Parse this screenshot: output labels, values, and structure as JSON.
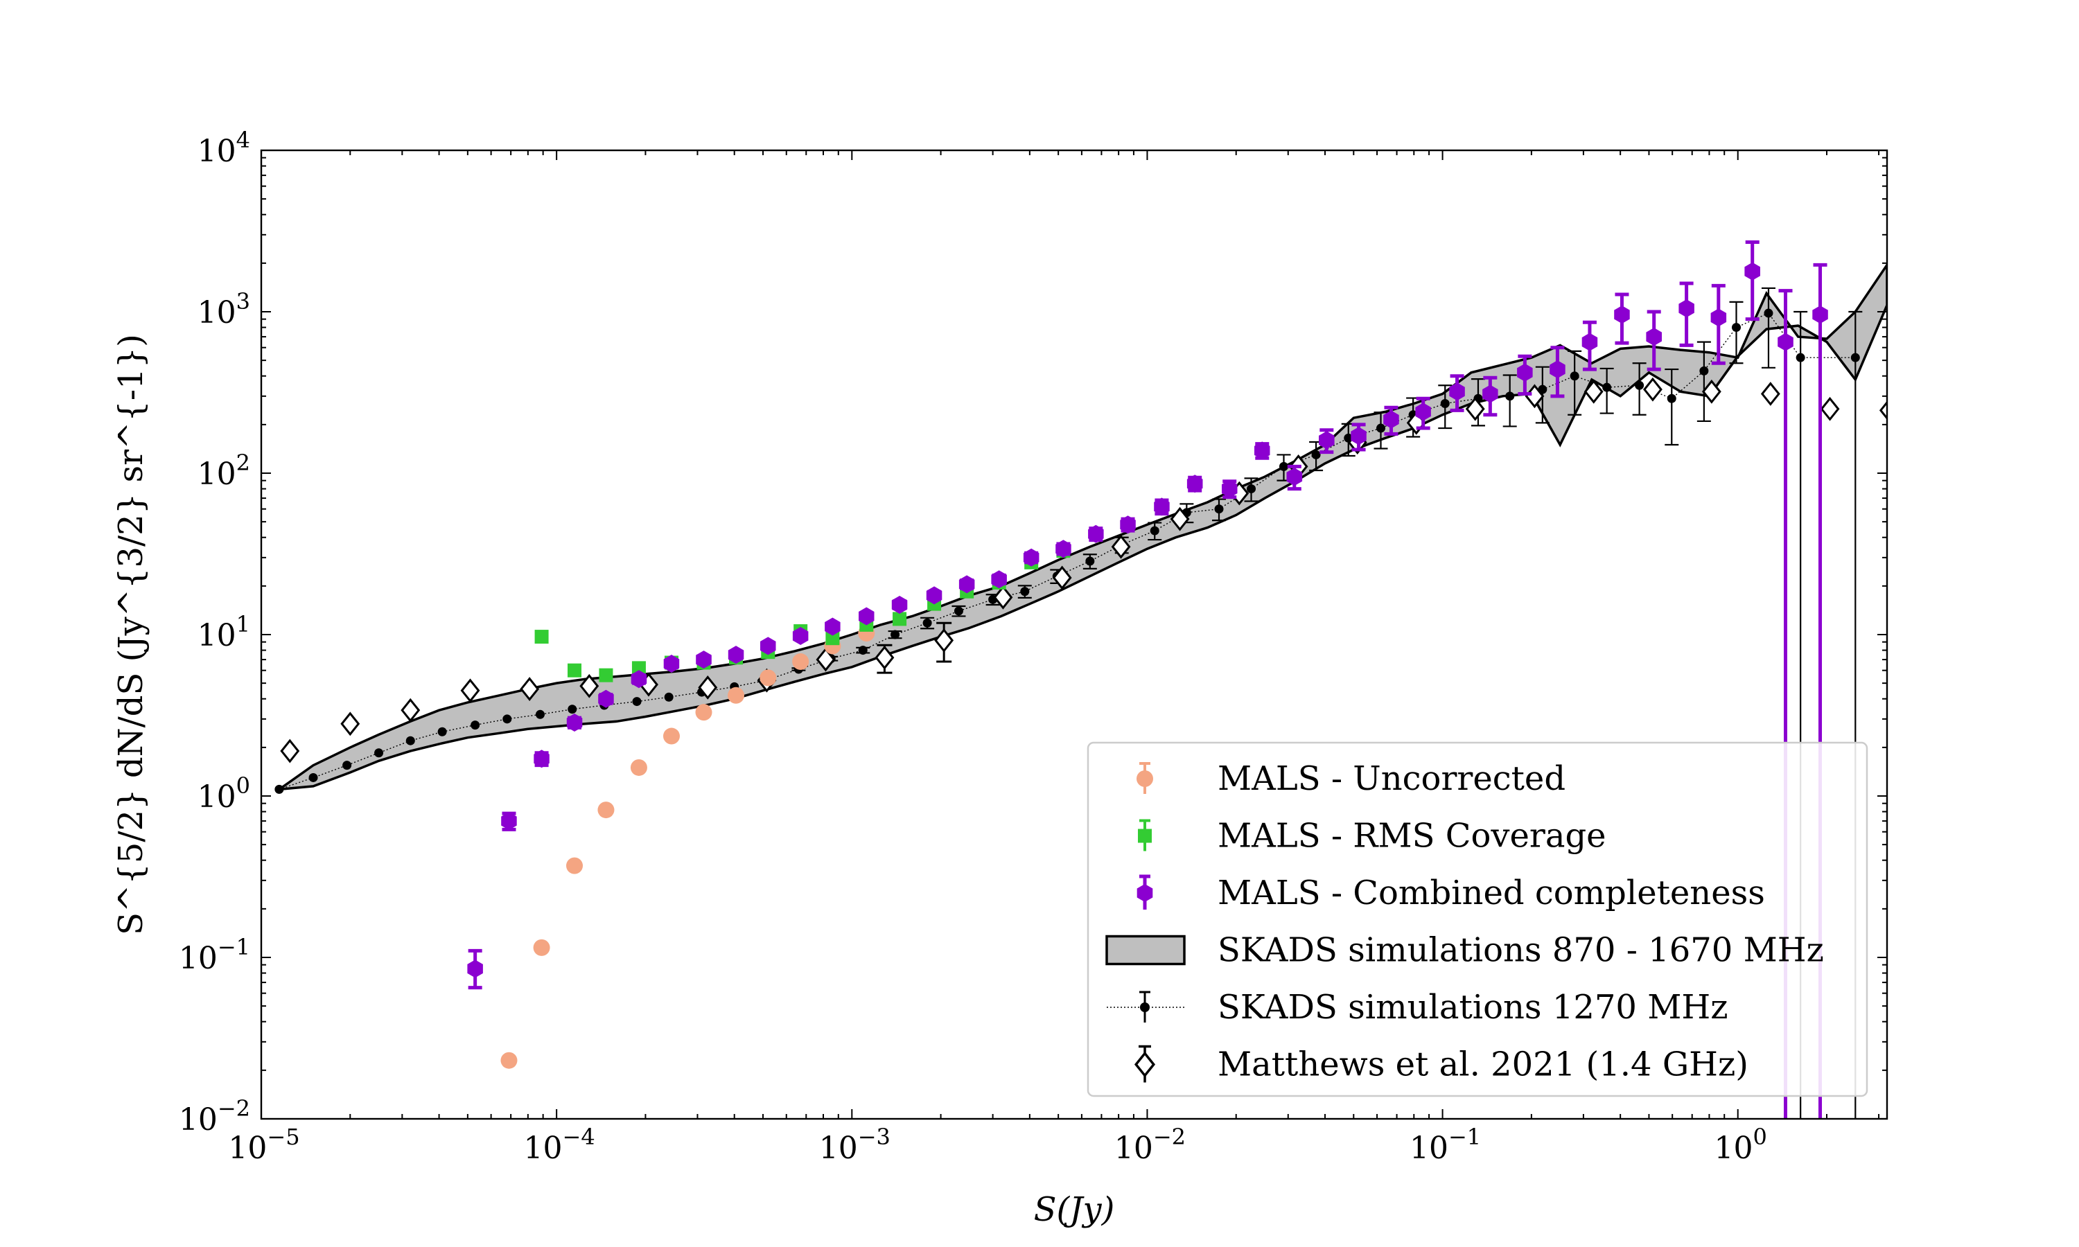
{
  "chart_data": {
    "type": "scatter",
    "title": "",
    "xlabel": "S(Jy)",
    "ylabel": "S^{5/2} dN/dS (Jy^{3/2} sr^{-1})",
    "xscale": "log",
    "yscale": "log",
    "xlim": [
      1e-05,
      3.2
    ],
    "ylim": [
      0.01,
      10000
    ],
    "x_ticks": [
      {
        "value": 1e-05,
        "base": "10",
        "exp": "−5"
      },
      {
        "value": 0.0001,
        "base": "10",
        "exp": "−4"
      },
      {
        "value": 0.001,
        "base": "10",
        "exp": "−3"
      },
      {
        "value": 0.01,
        "base": "10",
        "exp": "−2"
      },
      {
        "value": 0.1,
        "base": "10",
        "exp": "−1"
      },
      {
        "value": 1,
        "base": "10",
        "exp": "0"
      }
    ],
    "y_ticks": [
      {
        "value": 0.01,
        "base": "10",
        "exp": "−2"
      },
      {
        "value": 0.1,
        "base": "10",
        "exp": "−1"
      },
      {
        "value": 1,
        "base": "10",
        "exp": "0"
      },
      {
        "value": 10,
        "base": "10",
        "exp": "1"
      },
      {
        "value": 100,
        "base": "10",
        "exp": "2"
      },
      {
        "value": 1000,
        "base": "10",
        "exp": "3"
      },
      {
        "value": 10000,
        "base": "10",
        "exp": "4"
      }
    ],
    "legend_position": "lower-right",
    "series": [
      {
        "name": "MALS - Uncorrected",
        "kind": "circle",
        "color": "#f4a582",
        "x": [
          6.9e-05,
          8.9e-05,
          0.000115,
          0.000147,
          0.00019,
          0.000245,
          0.000315,
          0.000405,
          0.00052,
          0.00067,
          0.00086,
          0.00112
        ],
        "y": [
          0.023,
          0.115,
          0.37,
          0.82,
          1.5,
          2.35,
          3.3,
          4.2,
          5.4,
          6.8,
          8.5,
          10.2
        ]
      },
      {
        "name": "MALS - RMS Coverage",
        "kind": "square",
        "color": "#33cc33",
        "x": [
          8.9e-05,
          0.000115,
          0.000147,
          0.00019,
          0.000245,
          0.000315,
          0.000405,
          0.00052,
          0.00067,
          0.00086,
          0.00112,
          0.00145,
          0.0019,
          0.00245,
          0.00315,
          0.00405,
          0.0052
        ],
        "y": [
          9.7,
          6.0,
          5.6,
          6.2,
          6.7,
          6.7,
          7.2,
          7.8,
          10.5,
          9.5,
          11.5,
          12.5,
          15.5,
          18.5,
          21.0,
          28.0,
          33.0
        ]
      },
      {
        "name": "MALS - Combined completeness",
        "kind": "hexagon",
        "color": "#8b00d0",
        "x": [
          5.3e-05,
          6.9e-05,
          8.9e-05,
          0.000115,
          0.000147,
          0.00019,
          0.000245,
          0.000315,
          0.000405,
          0.00052,
          0.00067,
          0.00086,
          0.00112,
          0.00145,
          0.0019,
          0.00245,
          0.00315,
          0.00405,
          0.0052,
          0.0067,
          0.0086,
          0.0112,
          0.0145,
          0.019,
          0.0245,
          0.0315,
          0.0405,
          0.052,
          0.067,
          0.086,
          0.112,
          0.145,
          0.19,
          0.245,
          0.315,
          0.405,
          0.52,
          0.67,
          0.86,
          1.12,
          1.45,
          1.9
        ],
        "y": [
          0.085,
          0.7,
          1.7,
          2.85,
          4.0,
          5.3,
          6.6,
          7.0,
          7.5,
          8.5,
          9.8,
          11.2,
          13.0,
          15.3,
          17.5,
          20.5,
          22.0,
          30.0,
          34.0,
          42.0,
          48.0,
          62.0,
          86.0,
          80.0,
          138.0,
          95.0,
          160.0,
          170.0,
          215.0,
          240.0,
          320.0,
          310.0,
          420.0,
          440.0,
          650.0,
          960.0,
          700.0,
          1050.0,
          920.0,
          1780.0,
          650.0,
          960.0
        ],
        "y_low": [
          0.065,
          0.62,
          1.55,
          2.65,
          3.75,
          5.0,
          6.25,
          6.65,
          7.15,
          8.1,
          9.35,
          10.7,
          12.4,
          14.5,
          16.6,
          19.3,
          20.7,
          28.0,
          31.5,
          38.5,
          44.0,
          56.0,
          78.0,
          71.0,
          124.0,
          80.0,
          135.0,
          140.0,
          175.0,
          190.0,
          245.0,
          230.0,
          310.0,
          300.0,
          440.0,
          640.0,
          440.0,
          620.0,
          480.0,
          900.0,
          0.01,
          0.01
        ],
        "y_high": [
          0.11,
          0.78,
          1.85,
          3.05,
          4.25,
          5.6,
          6.95,
          7.35,
          7.85,
          8.9,
          10.25,
          11.7,
          13.6,
          16.1,
          18.4,
          21.7,
          23.3,
          32.0,
          36.5,
          45.5,
          52.0,
          68.0,
          94.0,
          89.0,
          152.0,
          110.0,
          185.0,
          200.0,
          255.0,
          290.0,
          400.0,
          390.0,
          530.0,
          600.0,
          860.0,
          1280.0,
          1000.0,
          1500.0,
          1450.0,
          2700.0,
          1350.0,
          1950.0
        ]
      },
      {
        "name": "SKADS simulations 870 - 1670 MHz",
        "kind": "band",
        "color": "#bfbfbf",
        "x": [
          1.15e-05,
          1.5e-05,
          2e-05,
          2.5e-05,
          3.2e-05,
          4e-05,
          5e-05,
          6.4e-05,
          8e-05,
          0.0001,
          0.000125,
          0.00016,
          0.0002,
          0.00025,
          0.00032,
          0.0004,
          0.0005,
          0.00064,
          0.0008,
          0.001,
          0.00125,
          0.0016,
          0.002,
          0.0025,
          0.0032,
          0.004,
          0.005,
          0.0064,
          0.008,
          0.01,
          0.0125,
          0.016,
          0.02,
          0.025,
          0.032,
          0.04,
          0.05,
          0.064,
          0.08,
          0.1,
          0.125,
          0.16,
          0.2,
          0.25,
          0.32,
          0.4,
          0.5,
          0.64,
          0.8,
          1.0,
          1.25,
          1.6,
          2.0,
          2.5,
          3.2
        ],
        "y_low": [
          1.1,
          1.15,
          1.4,
          1.65,
          1.9,
          2.1,
          2.3,
          2.45,
          2.6,
          2.7,
          2.8,
          2.9,
          3.1,
          3.35,
          3.65,
          4.0,
          4.5,
          5.1,
          5.7,
          6.3,
          7.3,
          8.5,
          9.7,
          11.0,
          13.0,
          15.5,
          18.5,
          23.0,
          28.0,
          34.0,
          40.0,
          46.0,
          55.0,
          70.0,
          90.0,
          115.0,
          140.0,
          165.0,
          190.0,
          230.0,
          270.0,
          300.0,
          310.0,
          150.0,
          380.0,
          300.0,
          420.0,
          320.0,
          300.0,
          530.0,
          780.0,
          820.0,
          650.0,
          380.0,
          1100.0
        ],
        "y_high": [
          1.1,
          1.55,
          2.0,
          2.4,
          2.9,
          3.4,
          3.8,
          4.2,
          4.6,
          5.0,
          5.3,
          5.5,
          5.7,
          5.9,
          6.2,
          6.6,
          7.1,
          7.9,
          8.8,
          10.0,
          11.5,
          13.0,
          15.0,
          17.5,
          20.0,
          24.0,
          29.0,
          35.0,
          41.0,
          48.0,
          56.0,
          66.0,
          80.0,
          95.0,
          120.0,
          150.0,
          220.0,
          240.0,
          270.0,
          310.0,
          420.0,
          470.0,
          520.0,
          620.0,
          480.0,
          590.0,
          610.0,
          580.0,
          560.0,
          520.0,
          1300.0,
          700.0,
          680.0,
          1000.0,
          1950.0
        ]
      },
      {
        "name": "SKADS simulations 1270 MHz",
        "kind": "dotline",
        "color": "#000000",
        "x": [
          1.15e-05,
          1.5e-05,
          1.95e-05,
          2.5e-05,
          3.2e-05,
          4.1e-05,
          5.3e-05,
          6.8e-05,
          8.8e-05,
          0.000113,
          0.000145,
          0.000187,
          0.00024,
          0.00031,
          0.0004,
          0.00051,
          0.00066,
          0.00085,
          0.00109,
          0.0014,
          0.0018,
          0.0023,
          0.003,
          0.00385,
          0.00495,
          0.0064,
          0.0082,
          0.0106,
          0.0136,
          0.0175,
          0.0225,
          0.029,
          0.0373,
          0.048,
          0.0618,
          0.0795,
          0.102,
          0.132,
          0.169,
          0.218,
          0.28,
          0.36,
          0.464,
          0.597,
          0.768,
          0.988,
          1.27,
          1.63,
          2.5
        ],
        "y": [
          1.1,
          1.3,
          1.55,
          1.85,
          2.2,
          2.5,
          2.75,
          3.0,
          3.2,
          3.45,
          3.65,
          3.85,
          4.1,
          4.4,
          4.75,
          5.2,
          6.1,
          7.1,
          8.0,
          10.0,
          11.8,
          14.0,
          16.5,
          18.5,
          23.0,
          28.5,
          36.0,
          44.0,
          57.0,
          60.0,
          80.0,
          110.0,
          130.0,
          165.0,
          190.0,
          230.0,
          270.0,
          290.0,
          300.0,
          330.0,
          400.0,
          340.0,
          350.0,
          290.0,
          430.0,
          800.0,
          980.0,
          520.0,
          520.0
        ],
        "y_low": [
          1.1,
          1.3,
          1.55,
          1.85,
          2.2,
          2.5,
          2.75,
          3.0,
          3.2,
          3.45,
          3.65,
          3.85,
          4.1,
          4.4,
          4.75,
          5.2,
          6.0,
          6.9,
          7.7,
          9.5,
          10.9,
          13.0,
          15.3,
          16.9,
          20.8,
          25.6,
          32.0,
          38.7,
          49.5,
          51.0,
          67.0,
          90.0,
          104.0,
          128.0,
          142.0,
          168.0,
          190.0,
          197.0,
          195.0,
          205.0,
          230.0,
          235.0,
          230.0,
          150.0,
          210.0,
          480.0,
          450.0,
          0.01,
          0.01
        ],
        "y_high": [
          1.1,
          1.3,
          1.55,
          1.85,
          2.2,
          2.5,
          2.75,
          3.0,
          3.2,
          3.45,
          3.65,
          3.85,
          4.1,
          4.4,
          4.75,
          5.2,
          6.2,
          7.3,
          8.3,
          10.5,
          12.7,
          15.0,
          17.7,
          20.1,
          25.2,
          31.4,
          40.0,
          49.3,
          64.5,
          69.0,
          93.0,
          130.0,
          156.0,
          202.0,
          238.0,
          292.0,
          350.0,
          383.0,
          405.0,
          455.0,
          570.0,
          445.0,
          480.0,
          440.0,
          650.0,
          1150.0,
          1400.0,
          1000.0,
          1000.0
        ]
      },
      {
        "name": "Matthews et al. 2021 (1.4 GHz)",
        "kind": "diamond",
        "color": "#000000",
        "x": [
          1.25e-05,
          2e-05,
          3.2e-05,
          5.1e-05,
          8.1e-05,
          0.000129,
          0.000205,
          0.000325,
          0.000515,
          0.000815,
          0.00129,
          0.00205,
          0.00325,
          0.00515,
          0.00815,
          0.0129,
          0.0205,
          0.0325,
          0.0515,
          0.0815,
          0.129,
          0.205,
          0.325,
          0.515,
          0.815,
          1.29,
          2.05,
          3.25
        ],
        "y": [
          1.9,
          2.8,
          3.4,
          4.5,
          4.6,
          4.8,
          4.9,
          4.7,
          5.2,
          7.0,
          7.2,
          9.2,
          17.0,
          22.5,
          35.0,
          52.0,
          75.0,
          110.0,
          155.0,
          205.0,
          250.0,
          300.0,
          320.0,
          330.0,
          320.0,
          310.0,
          250.0,
          245.0
        ],
        "y_low": [
          1.9,
          2.8,
          3.4,
          4.5,
          4.6,
          4.8,
          4.9,
          4.7,
          5.2,
          7.0,
          5.8,
          6.8,
          17.0,
          22.5,
          35.0,
          52.0,
          75.0,
          110.0,
          155.0,
          205.0,
          250.0,
          300.0,
          320.0,
          330.0,
          320.0,
          310.0,
          250.0,
          245.0
        ],
        "y_high": [
          1.9,
          2.8,
          3.4,
          4.5,
          4.6,
          4.8,
          4.9,
          4.7,
          5.2,
          7.0,
          8.6,
          11.8,
          17.0,
          22.5,
          35.0,
          52.0,
          75.0,
          110.0,
          155.0,
          205.0,
          250.0,
          300.0,
          320.0,
          330.0,
          320.0,
          310.0,
          250.0,
          245.0
        ]
      }
    ]
  }
}
